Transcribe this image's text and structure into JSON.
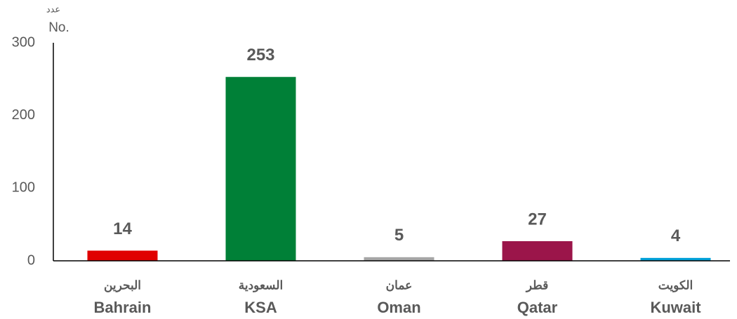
{
  "chart_data": {
    "type": "bar",
    "y_label_ar": "عدد",
    "y_label": "No.",
    "categories": [
      "Bahrain",
      "KSA",
      "Oman",
      "Qatar",
      "Kuwait"
    ],
    "categories_ar": [
      "البحرين",
      "السعودية",
      "عمان",
      "قطر",
      "الكويت"
    ],
    "values": [
      14,
      253,
      5,
      27,
      4
    ],
    "colors": [
      "#e00000",
      "#008037",
      "#a6a6a6",
      "#9b154a",
      "#00a0d8"
    ],
    "ylim": [
      0,
      300
    ],
    "yticks": [
      0,
      100,
      200,
      300
    ],
    "grid": false
  }
}
